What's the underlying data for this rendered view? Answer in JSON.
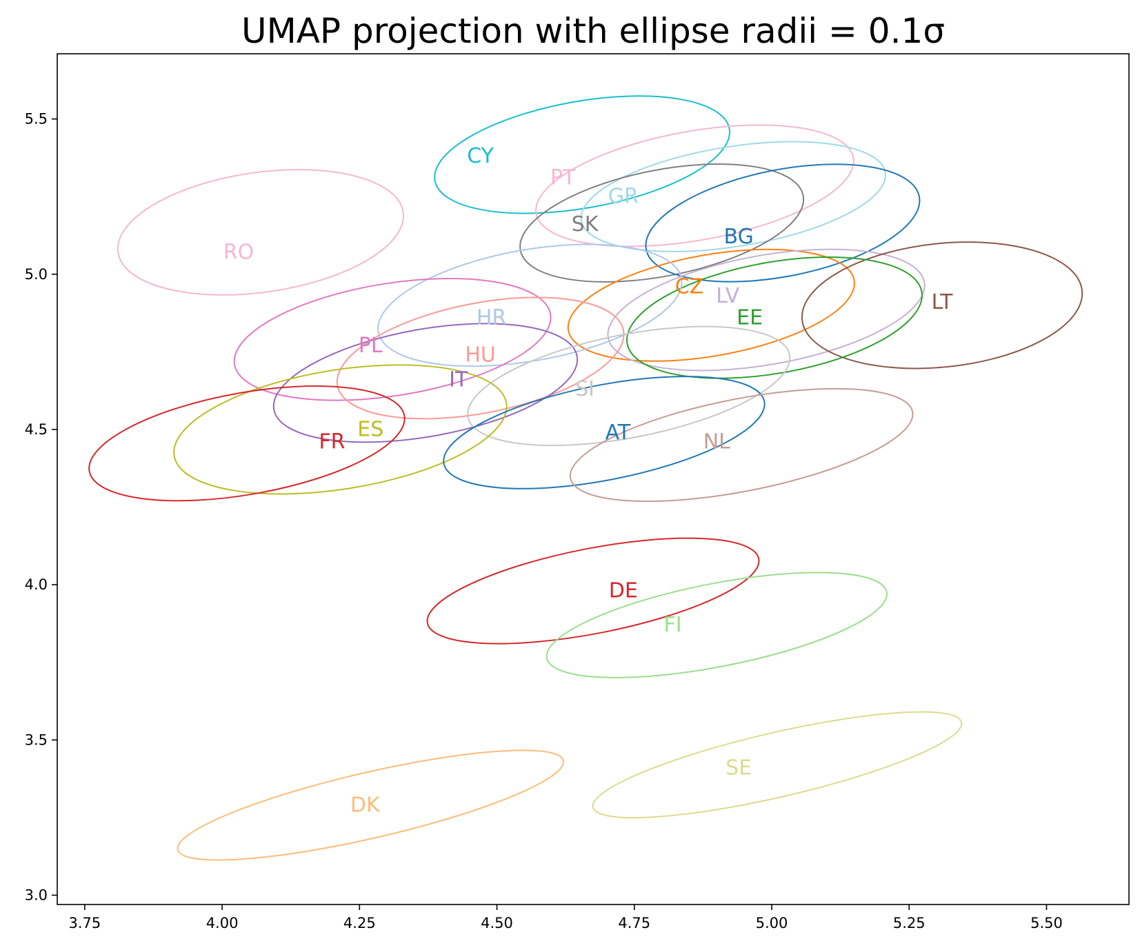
{
  "chart_data": {
    "type": "scatter",
    "title": "UMAP projection with ellipse radii = 0.1σ",
    "xlabel": "",
    "ylabel": "",
    "xlim": [
      3.7,
      5.65
    ],
    "ylim": [
      2.97,
      5.71
    ],
    "xticks": [
      "3.75",
      "4.00",
      "4.25",
      "4.50",
      "4.75",
      "5.00",
      "5.25",
      "5.50"
    ],
    "yticks": [
      "3.0",
      "3.5",
      "4.0",
      "4.5",
      "5.0",
      "5.5"
    ],
    "grid": false,
    "legend": "none",
    "points": [
      {
        "label": "CY",
        "x": 4.47,
        "y": 5.38,
        "color": "#17becf",
        "ellipse": {
          "cx": 4.655,
          "cy": 5.385,
          "rx": 0.272,
          "ry": 0.172,
          "angle": 10
        }
      },
      {
        "label": "PT",
        "x": 4.62,
        "y": 5.31,
        "color": "#f7b6d2",
        "ellipse": {
          "cx": 4.86,
          "cy": 5.285,
          "rx": 0.293,
          "ry": 0.176,
          "angle": 10
        }
      },
      {
        "label": "GR",
        "x": 4.73,
        "y": 5.25,
        "color": "#9edae5",
        "ellipse": {
          "cx": 4.93,
          "cy": 5.25,
          "rx": 0.28,
          "ry": 0.161,
          "angle": 9
        }
      },
      {
        "label": "SK",
        "x": 4.66,
        "y": 5.16,
        "color": "#7f7f7f",
        "ellipse": {
          "cx": 4.8,
          "cy": 5.165,
          "rx": 0.262,
          "ry": 0.171,
          "angle": 11
        }
      },
      {
        "label": "BG",
        "x": 4.94,
        "y": 5.12,
        "color": "#1f77b4",
        "ellipse": {
          "cx": 5.02,
          "cy": 5.165,
          "rx": 0.253,
          "ry": 0.172,
          "angle": 11
        }
      },
      {
        "label": "RO",
        "x": 4.03,
        "y": 5.07,
        "color": "#f7b6d2",
        "ellipse": {
          "cx": 4.07,
          "cy": 5.135,
          "rx": 0.262,
          "ry": 0.193,
          "angle": 8
        }
      },
      {
        "label": "CZ",
        "x": 4.85,
        "y": 4.96,
        "color": "#ff7f0e",
        "ellipse": {
          "cx": 4.89,
          "cy": 4.9,
          "rx": 0.264,
          "ry": 0.163,
          "angle": 10
        }
      },
      {
        "label": "LV",
        "x": 4.92,
        "y": 4.93,
        "color": "#c5b0d5",
        "ellipse": {
          "cx": 4.99,
          "cy": 4.885,
          "rx": 0.292,
          "ry": 0.176,
          "angle": 10
        }
      },
      {
        "label": "LT",
        "x": 5.31,
        "y": 4.91,
        "color": "#8c564b",
        "ellipse": {
          "cx": 5.31,
          "cy": 4.9,
          "rx": 0.256,
          "ry": 0.199,
          "angle": 6
        }
      },
      {
        "label": "EE",
        "x": 4.96,
        "y": 4.86,
        "color": "#2ca02c",
        "ellipse": {
          "cx": 5.005,
          "cy": 4.86,
          "rx": 0.272,
          "ry": 0.179,
          "angle": 10
        }
      },
      {
        "label": "HR",
        "x": 4.49,
        "y": 4.86,
        "color": "#aec7e8",
        "ellipse": {
          "cx": 4.56,
          "cy": 4.9,
          "rx": 0.28,
          "ry": 0.179,
          "angle": 10
        }
      },
      {
        "label": "PL",
        "x": 4.27,
        "y": 4.77,
        "color": "#e377c2",
        "ellipse": {
          "cx": 4.31,
          "cy": 4.79,
          "rx": 0.291,
          "ry": 0.181,
          "angle": 9
        }
      },
      {
        "label": "HU",
        "x": 4.47,
        "y": 4.74,
        "color": "#ff9896",
        "ellipse": {
          "cx": 4.47,
          "cy": 4.73,
          "rx": 0.265,
          "ry": 0.177,
          "angle": 11
        }
      },
      {
        "label": "IT",
        "x": 4.43,
        "y": 4.66,
        "color": "#9467bd",
        "ellipse": {
          "cx": 4.37,
          "cy": 4.65,
          "rx": 0.28,
          "ry": 0.173,
          "angle": 10
        }
      },
      {
        "label": "SI",
        "x": 4.66,
        "y": 4.63,
        "color": "#c7c7c7",
        "ellipse": {
          "cx": 4.74,
          "cy": 4.64,
          "rx": 0.298,
          "ry": 0.166,
          "angle": 11
        }
      },
      {
        "label": "ES",
        "x": 4.27,
        "y": 4.5,
        "color": "#bcbd22",
        "ellipse": {
          "cx": 4.215,
          "cy": 4.5,
          "rx": 0.306,
          "ry": 0.192,
          "angle": 9
        }
      },
      {
        "label": "AT",
        "x": 4.72,
        "y": 4.49,
        "color": "#1f77b4",
        "ellipse": {
          "cx": 4.695,
          "cy": 4.49,
          "rx": 0.297,
          "ry": 0.153,
          "angle": 11
        }
      },
      {
        "label": "FR",
        "x": 4.2,
        "y": 4.46,
        "color": "#d62728",
        "ellipse": {
          "cx": 4.045,
          "cy": 4.455,
          "rx": 0.291,
          "ry": 0.164,
          "angle": 10
        }
      },
      {
        "label": "NL",
        "x": 4.9,
        "y": 4.46,
        "color": "#c49c94",
        "ellipse": {
          "cx": 4.945,
          "cy": 4.45,
          "rx": 0.317,
          "ry": 0.149,
          "angle": 11
        }
      },
      {
        "label": "DE",
        "x": 4.73,
        "y": 3.98,
        "color": "#d62728",
        "ellipse": {
          "cx": 4.675,
          "cy": 3.98,
          "rx": 0.307,
          "ry": 0.137,
          "angle": 11
        }
      },
      {
        "label": "FI",
        "x": 4.82,
        "y": 3.87,
        "color": "#98df8a",
        "ellipse": {
          "cx": 4.9,
          "cy": 3.87,
          "rx": 0.315,
          "ry": 0.134,
          "angle": 11
        }
      },
      {
        "label": "SE",
        "x": 4.94,
        "y": 3.41,
        "color": "#dbdb8d",
        "ellipse": {
          "cx": 5.01,
          "cy": 3.42,
          "rx": 0.344,
          "ry": 0.104,
          "angle": 13
        }
      },
      {
        "label": "DK",
        "x": 4.26,
        "y": 3.29,
        "color": "#ffbb78",
        "ellipse": {
          "cx": 4.27,
          "cy": 3.29,
          "rx": 0.36,
          "ry": 0.106,
          "angle": 13
        }
      }
    ]
  }
}
